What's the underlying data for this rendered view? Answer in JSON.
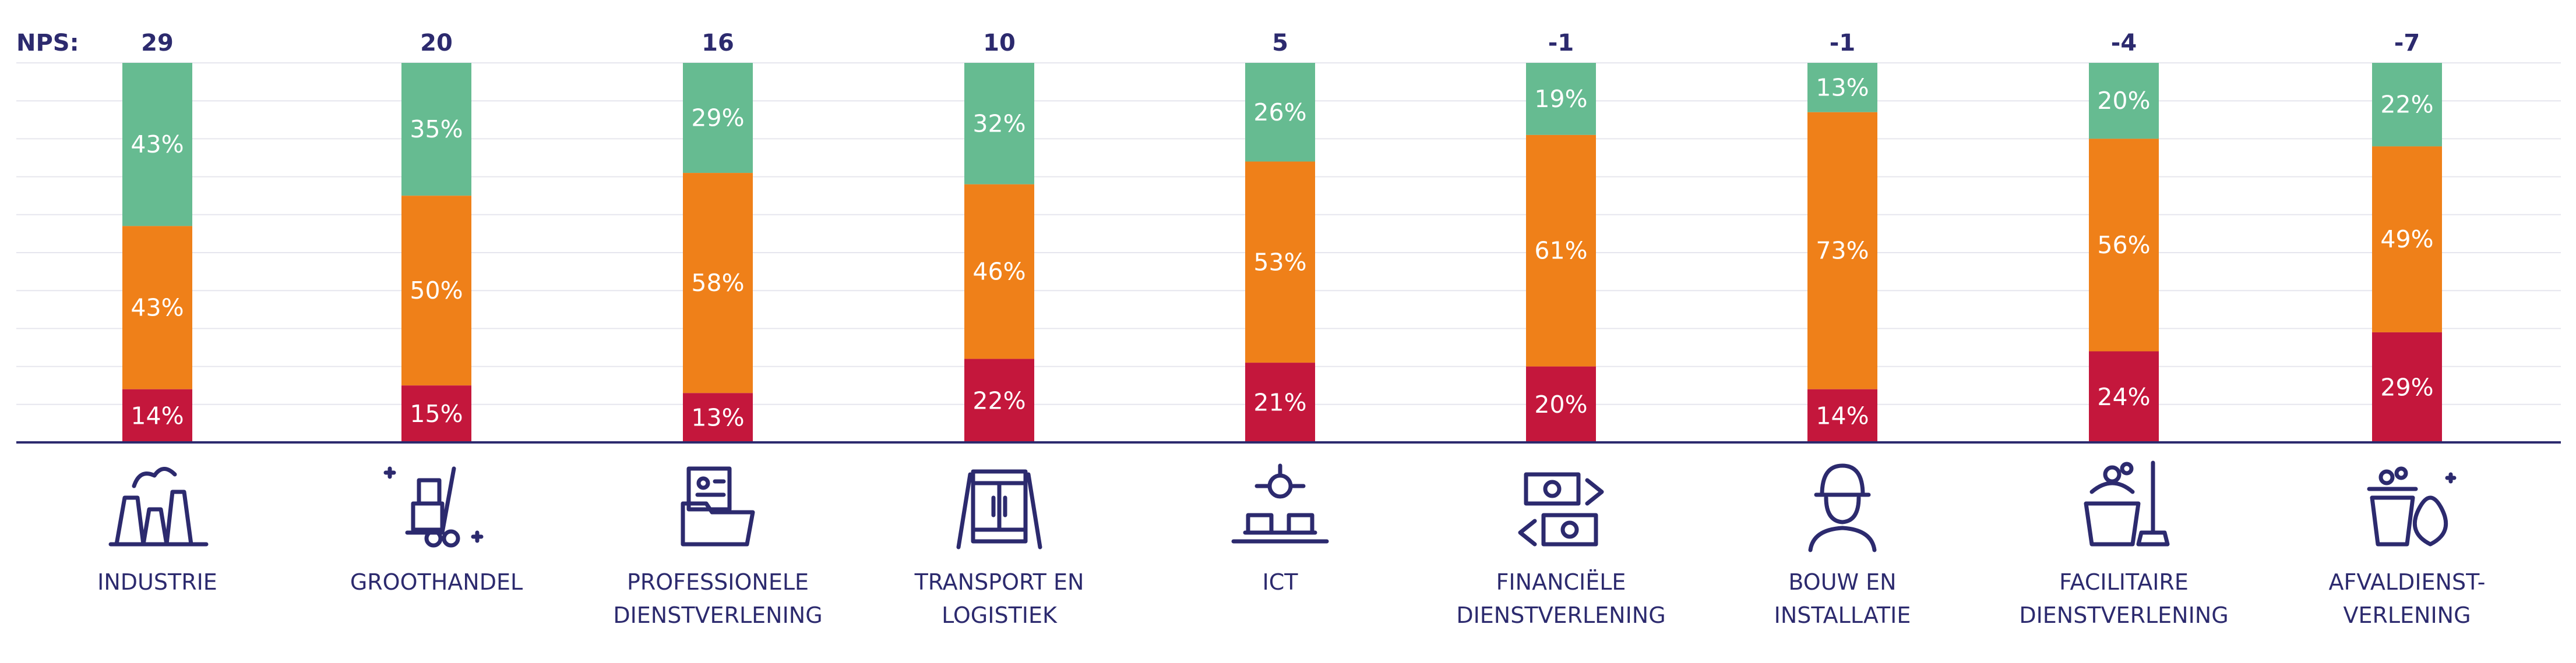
{
  "chart_data": {
    "type": "bar",
    "stacked": true,
    "orientation": "vertical",
    "nps_label": "NPS:",
    "ylim": [
      0,
      100
    ],
    "grid": true,
    "colors": {
      "green": "#66bb91",
      "orange": "#ef8019",
      "red": "#c4173c",
      "text": "#2c2a6e"
    },
    "categories": [
      {
        "label_lines": [
          "INDUSTRIE"
        ],
        "icon": "factory-icon"
      },
      {
        "label_lines": [
          "GROOTHANDEL"
        ],
        "icon": "hand-truck-icon"
      },
      {
        "label_lines": [
          "PROFESSIONELE",
          "DIENSTVERLENING"
        ],
        "icon": "folder-documents-icon"
      },
      {
        "label_lines": [
          "TRANSPORT EN",
          "LOGISTIEK"
        ],
        "icon": "container-icon"
      },
      {
        "label_lines": [
          "ICT"
        ],
        "icon": "network-devices-icon"
      },
      {
        "label_lines": [
          "FINANCIËLE",
          "DIENSTVERLENING"
        ],
        "icon": "money-exchange-icon"
      },
      {
        "label_lines": [
          "BOUW EN",
          "INSTALLATIE"
        ],
        "icon": "construction-worker-icon"
      },
      {
        "label_lines": [
          "FACILITAIRE",
          "DIENSTVERLENING"
        ],
        "icon": "cleaning-bucket-icon"
      },
      {
        "label_lines": [
          "AFVALDIENST-",
          "VERLENING"
        ],
        "icon": "waste-bin-icon"
      }
    ],
    "nps": [
      "29",
      "20",
      "16",
      "10",
      "5",
      "-1",
      "-1",
      "-4",
      "-7"
    ],
    "series": [
      {
        "color": "green",
        "values": [
          43,
          35,
          29,
          32,
          26,
          19,
          13,
          20,
          22
        ]
      },
      {
        "color": "orange",
        "values": [
          43,
          50,
          58,
          46,
          53,
          61,
          73,
          56,
          49
        ]
      },
      {
        "color": "red",
        "values": [
          14,
          15,
          13,
          22,
          21,
          20,
          14,
          24,
          29
        ]
      }
    ]
  }
}
